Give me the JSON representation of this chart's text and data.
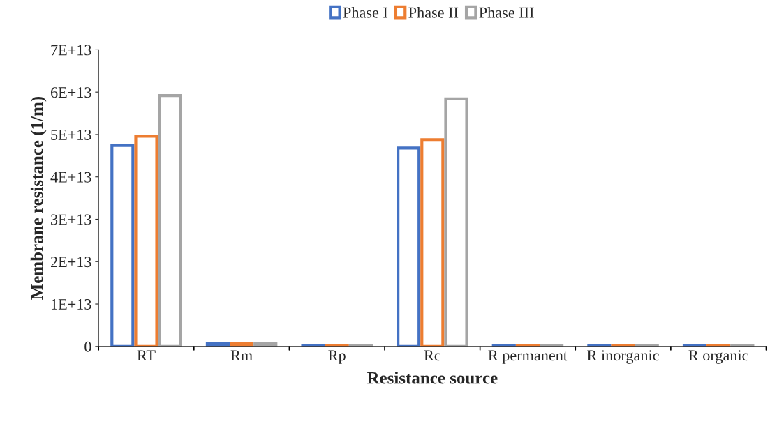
{
  "chart_data": {
    "type": "bar",
    "categories": [
      "RT",
      "Rm",
      "Rp",
      "Rc",
      "R permanent",
      "R inorganic",
      "R organic"
    ],
    "series": [
      {
        "name": "Phase I",
        "color": "#4472c4",
        "values": [
          47400000000000.0,
          700000000000.0,
          300000000000.0,
          46800000000000.0,
          300000000000.0,
          300000000000.0,
          300000000000.0
        ]
      },
      {
        "name": "Phase II",
        "color": "#ed7d31",
        "values": [
          49600000000000.0,
          700000000000.0,
          300000000000.0,
          48800000000000.0,
          300000000000.0,
          300000000000.0,
          300000000000.0
        ]
      },
      {
        "name": "Phase III",
        "color": "#a5a5a5",
        "values": [
          59200000000000.0,
          700000000000.0,
          300000000000.0,
          58400000000000.0,
          300000000000.0,
          300000000000.0,
          300000000000.0
        ]
      }
    ],
    "xlabel": "Resistance source",
    "ylabel": "Membrane resistance (1/m)",
    "ylim": [
      0,
      70000000000000.0
    ],
    "yticks": [
      0,
      {
        "value": 10000000000000.0,
        "label": "1E+13"
      },
      {
        "value": 20000000000000.0,
        "label": "2E+13"
      },
      {
        "value": 30000000000000.0,
        "label": "3E+13"
      },
      {
        "value": 40000000000000.0,
        "label": "4E+13"
      },
      {
        "value": 50000000000000.0,
        "label": "5E+13"
      },
      {
        "value": 60000000000000.0,
        "label": "6E+13"
      },
      {
        "value": 70000000000000.0,
        "label": "7E+13"
      }
    ],
    "grid": false,
    "legend": "top"
  }
}
